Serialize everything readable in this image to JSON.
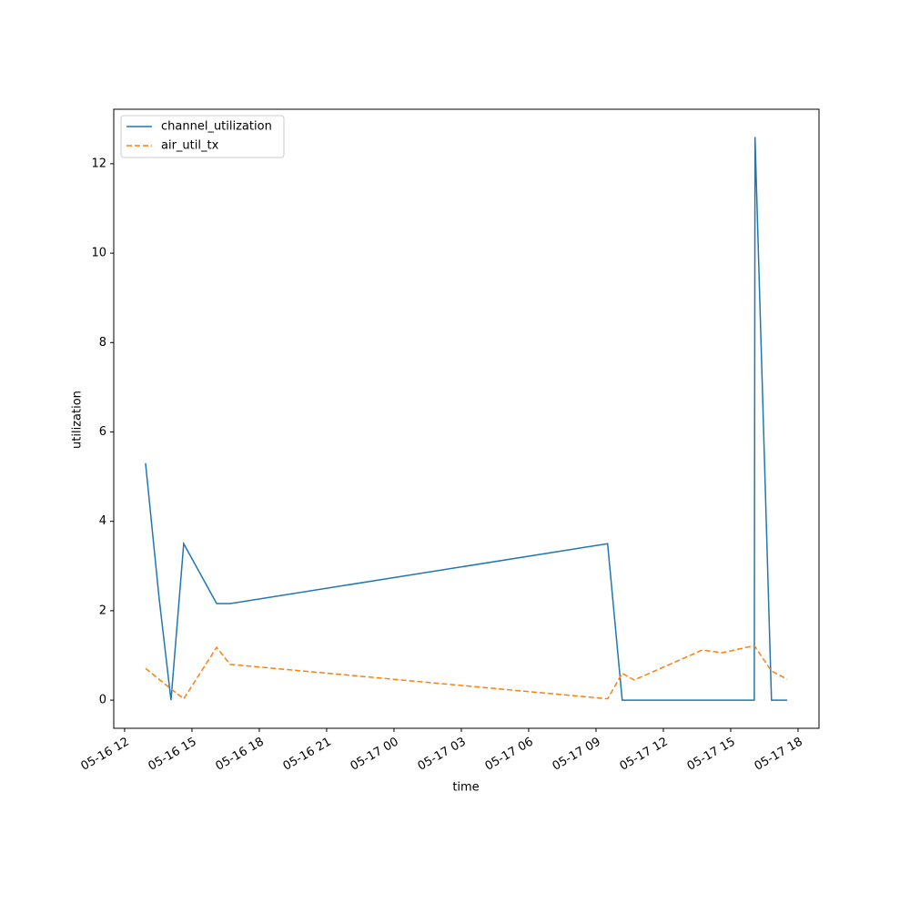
{
  "chart_data": {
    "type": "line",
    "x_label": "time",
    "y_label": "utilization",
    "xlim": [
      "05-16 11:31",
      "05-17 18:56"
    ],
    "xticks": [
      "05-16 12",
      "05-16 15",
      "05-16 18",
      "05-16 21",
      "05-17 00",
      "05-17 03",
      "05-17 06",
      "05-17 09",
      "05-17 12",
      "05-17 15",
      "05-17 18"
    ],
    "ylim": [
      -0.63,
      13.22
    ],
    "yticks": [
      0,
      2,
      4,
      6,
      8,
      10,
      12
    ],
    "legend": "upper left",
    "series": [
      {
        "name": "channel_utilization",
        "color": "#1f77b4",
        "style": "solid",
        "x": [
          "05-16 12:56",
          "05-16 13:32",
          "05-16 14:04",
          "05-16 14:38",
          "05-16 16:06",
          "05-16 16:42",
          "05-17 09:31",
          "05-17 10:10",
          "05-17 16:03",
          "05-17 16:05",
          "05-17 16:49",
          "05-17 17:31"
        ],
        "values": [
          5.3,
          2.3,
          0,
          3.5,
          2.16,
          2.16,
          3.5,
          0,
          0,
          12.6,
          0,
          0
        ]
      },
      {
        "name": "air_util_tx",
        "color": "#ff7f0e",
        "style": "dashed",
        "x": [
          "05-16 12:56",
          "05-16 14:04",
          "05-16 14:38",
          "05-16 16:06",
          "05-16 16:42",
          "05-17 09:31",
          "05-17 10:10",
          "05-17 10:42",
          "05-17 13:44",
          "05-17 14:38",
          "05-17 16:03",
          "05-17 16:49",
          "05-17 17:31"
        ],
        "values": [
          0.71,
          0.25,
          0.03,
          1.18,
          0.8,
          0.03,
          0.6,
          0.45,
          1.12,
          1.06,
          1.22,
          0.65,
          0.47
        ]
      }
    ]
  }
}
